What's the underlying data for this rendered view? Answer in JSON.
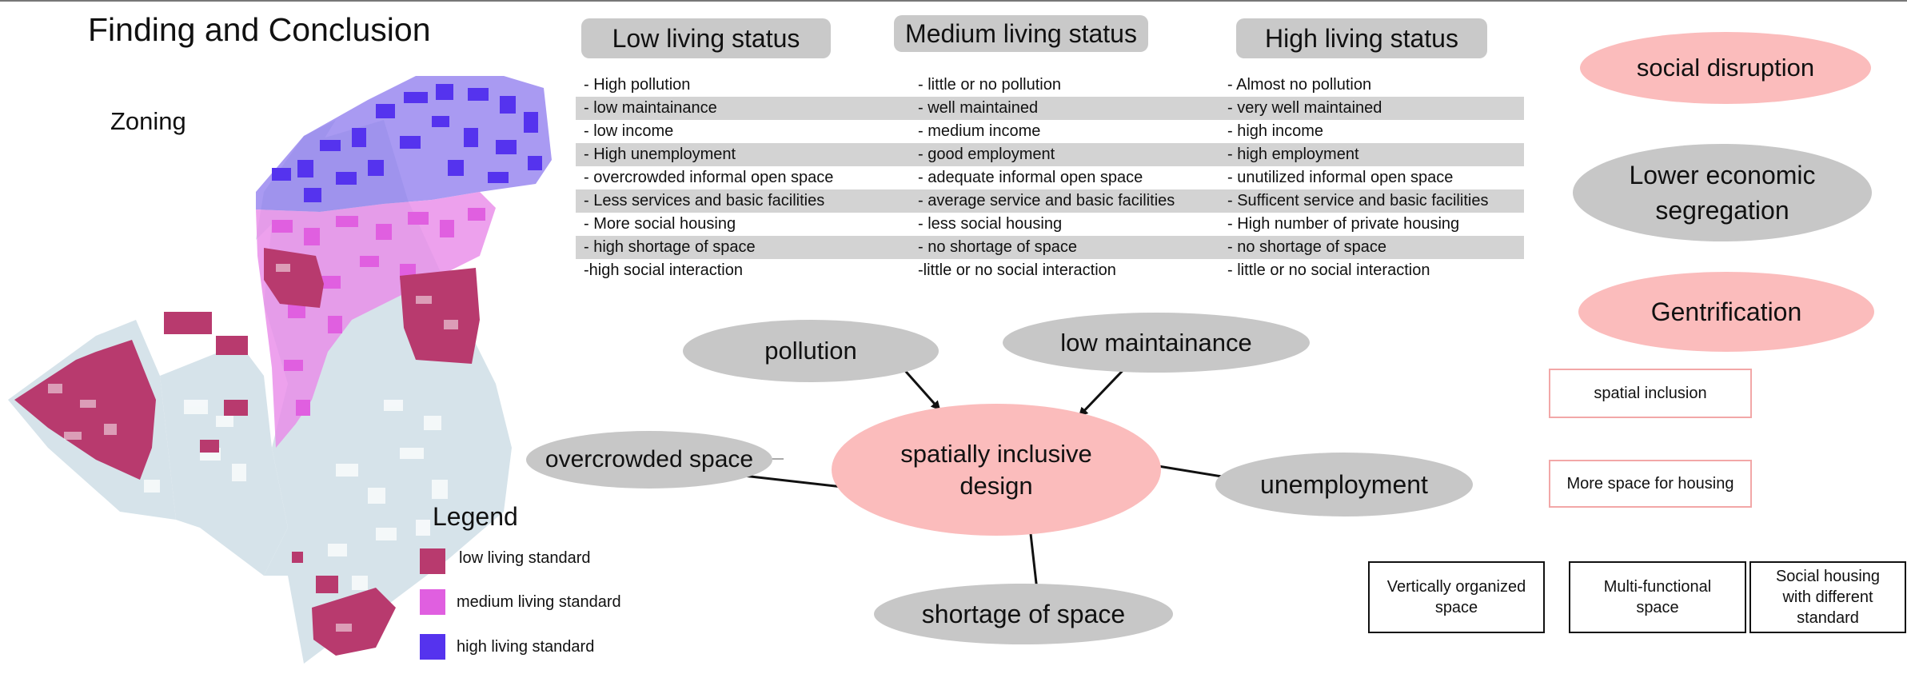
{
  "title": "Finding and Conclusion",
  "zoning_label": "Zoning",
  "legend": {
    "title": "Legend",
    "items": [
      {
        "label": "low living standard",
        "color": "#b83a6e"
      },
      {
        "label": "medium living standard",
        "color": "#e05fe0"
      },
      {
        "label": "high living standard",
        "color": "#5533ee"
      }
    ]
  },
  "status_table": {
    "headers": [
      "Low living status",
      "Medium living status",
      "High living status"
    ],
    "rows": [
      [
        "- High pollution",
        "- little or no pollution",
        "- Almost no pollution"
      ],
      [
        "- low maintainance",
        "- well maintained",
        "- very well maintained"
      ],
      [
        "- low income",
        "- medium income",
        "- high income"
      ],
      [
        "- High unemployment",
        "- good employment",
        "- high employment"
      ],
      [
        "- overcrowded informal open space",
        "- adequate informal open space",
        "- unutilized informal open space"
      ],
      [
        "- Less services and basic facilities",
        "- average service and basic facilities",
        "- Sufficent service and basic facilities"
      ],
      [
        "- More social housing",
        "- less social housing",
        "- High number of private housing"
      ],
      [
        "- high shortage of space",
        "- no shortage of space",
        "- no shortage of space"
      ],
      [
        "-high social interaction",
        "-little or no social interaction",
        "- little or no social interaction"
      ]
    ]
  },
  "diagram": {
    "center": "spatially inclusive design",
    "center_line1": "spatially inclusive",
    "center_line2": "design",
    "problems": {
      "pollution": "pollution",
      "low_maintainance": "low maintainance",
      "overcrowded": "overcrowded space",
      "unemployment": "unemployment",
      "shortage": "shortage of space"
    }
  },
  "outcomes": {
    "social_disruption": "social disruption",
    "lower_economic_l1": "Lower economic",
    "lower_economic_l2": "segregation",
    "gentrification": "Gentrification"
  },
  "solutions": {
    "spatial_inclusion": "spatial inclusion",
    "more_space": "More space for housing",
    "vertical_l1": "Vertically organized",
    "vertical_l2": "space",
    "multi_l1": "Multi-functional",
    "multi_l2": "space",
    "social_l1": "Social housing",
    "social_l2": "with different",
    "social_l3": "standard"
  },
  "colors": {
    "low": "#b83a6e",
    "medium": "#e05fe0",
    "high": "#5533ee",
    "pill_gray": "#c9c9c9",
    "ellipse_pink": "#fbbcbc",
    "ellipse_gray": "#c7c7c7",
    "row_shade": "#d3d3d3",
    "base_blocks": "#d6e3ea"
  }
}
